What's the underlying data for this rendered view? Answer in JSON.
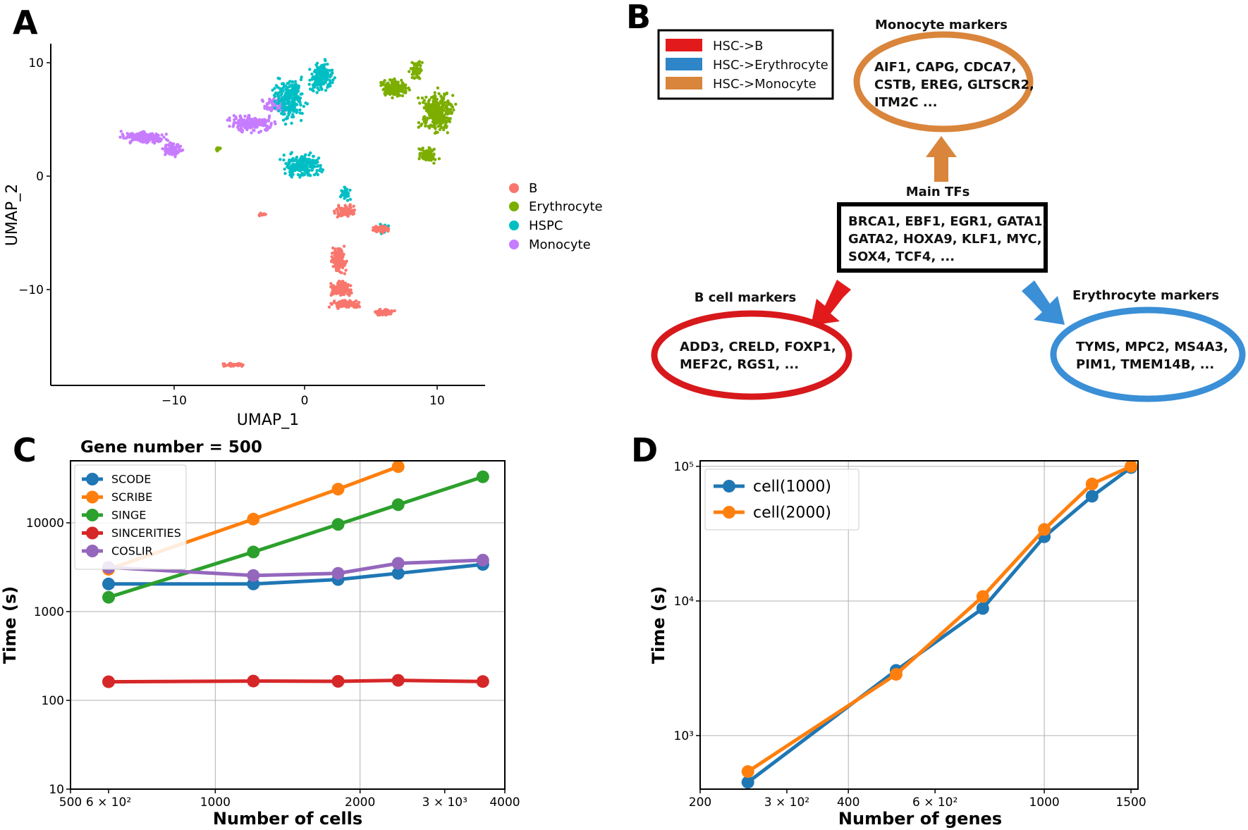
{
  "panels": {
    "a": "A",
    "b": "B",
    "c": "C",
    "d": "D"
  },
  "umap": {
    "xlabel": "UMAP_1",
    "ylabel": "UMAP_2",
    "xticks": [
      "−10",
      "0",
      "10"
    ],
    "yticks": [
      "10",
      "0",
      "−10"
    ],
    "legend": [
      {
        "label": "B",
        "color": "#F8766D"
      },
      {
        "label": "Erythrocyte",
        "color": "#7CAE00"
      },
      {
        "label": "HSPC",
        "color": "#00BFC4"
      },
      {
        "label": "Monocyte",
        "color": "#C77CFF"
      }
    ]
  },
  "diagram": {
    "legend": [
      {
        "label": "HSC->B",
        "color": "#E31A1C"
      },
      {
        "label": "HSC->Erythrocyte",
        "color": "#2E86C8"
      },
      {
        "label": "HSC->Monocyte",
        "color": "#D9853B"
      }
    ],
    "monocyte": {
      "title": "Monocyte markers",
      "lines": [
        "AIF1, CAPG, CDCA7,",
        "CSTB, EREG, GLTSCR2,",
        "ITM2C ..."
      ],
      "color": "#D9853B"
    },
    "tfs": {
      "title": "Main TFs",
      "lines": [
        "BRCA1, EBF1, EGR1, GATA1,",
        "GATA2, HOXA9, KLF1, MYC,",
        "SOX4, TCF4, ..."
      ]
    },
    "bcell": {
      "title": "B cell markers",
      "lines": [
        "ADD3, CRELD, FOXP1,",
        "MEF2C, RGS1, ..."
      ],
      "color": "#D7191C"
    },
    "erythrocyte": {
      "title": "Erythrocyte markers",
      "lines": [
        "TYMS, MPC2, MS4A3,",
        "PIM1, TMEM14B, ..."
      ],
      "color": "#3A8FD6"
    }
  },
  "chart_data": [
    {
      "type": "line",
      "title": "Gene number = 500",
      "xlabel": "Number of cells",
      "ylabel": "Time (s)",
      "xscale": "log",
      "yscale": "log",
      "xlim": [
        500,
        4000
      ],
      "ylim": [
        10,
        50000
      ],
      "xtick_labels": [
        "500",
        "6 × 10²",
        "1000",
        "2000",
        "3 × 10³",
        "4000"
      ],
      "ytick_labels": [
        "10",
        "100",
        "1000",
        "10000"
      ],
      "grid": true,
      "legend_position": "top-left",
      "x": [
        600,
        1200,
        1800,
        2400,
        3600
      ],
      "series": [
        {
          "name": "SCODE",
          "color": "#1F77B4",
          "values": [
            2050,
            2050,
            2300,
            2700,
            3400
          ]
        },
        {
          "name": "SCRIBE",
          "color": "#FF7F0E",
          "values": [
            3000,
            11000,
            24000,
            43000,
            null
          ]
        },
        {
          "name": "SINGE",
          "color": "#2CA02C",
          "values": [
            1450,
            4700,
            9600,
            16000,
            33000
          ]
        },
        {
          "name": "SINCERITIES",
          "color": "#D62728",
          "values": [
            162,
            165,
            164,
            168,
            163
          ]
        },
        {
          "name": "COSLIR",
          "color": "#9467BD",
          "values": [
            3150,
            2550,
            2700,
            3500,
            3800
          ]
        }
      ]
    },
    {
      "type": "line",
      "xlabel": "Number of genes",
      "ylabel": "Time (s)",
      "xscale": "log",
      "yscale": "log",
      "xlim": [
        200,
        1550
      ],
      "ylim": [
        400,
        110000
      ],
      "xtick_labels": [
        "200",
        "3 × 10²",
        "400",
        "6 × 10²",
        "1000",
        "1500"
      ],
      "ytick_labels": [
        "10³",
        "10⁴",
        "10⁵"
      ],
      "grid": true,
      "legend_position": "top-left",
      "x": [
        250,
        500,
        750,
        1000,
        1250,
        1500
      ],
      "series": [
        {
          "name": "cell(1000)",
          "color": "#1F77B4",
          "values": [
            450,
            3050,
            8800,
            30000,
            60000,
            98000
          ]
        },
        {
          "name": "cell(2000)",
          "color": "#FF7F0E",
          "values": [
            540,
            2850,
            10800,
            34000,
            74000,
            100000
          ]
        }
      ]
    }
  ]
}
